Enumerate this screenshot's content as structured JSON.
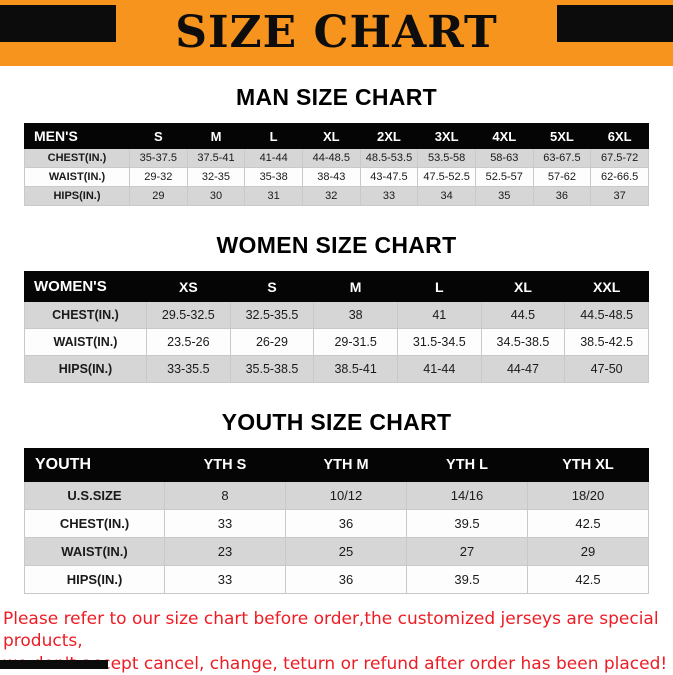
{
  "banner": {
    "title": "SIZE CHART",
    "bg_color": "#F7941D",
    "corner_color": "#0C0C0C"
  },
  "sections": [
    {
      "id": "men",
      "heading": "MAN SIZE CHART",
      "table": {
        "header": [
          "MEN'S",
          "S",
          "M",
          "L",
          "XL",
          "2XL",
          "3XL",
          "4XL",
          "5XL",
          "6XL"
        ],
        "rows": [
          [
            "CHEST(IN.)",
            "35-37.5",
            "37.5-41",
            "41-44",
            "44-48.5",
            "48.5-53.5",
            "53.5-58",
            "58-63",
            "63-67.5",
            "67.5-72"
          ],
          [
            "WAIST(IN.)",
            "29-32",
            "32-35",
            "35-38",
            "38-43",
            "43-47.5",
            "47.5-52.5",
            "52.5-57",
            "57-62",
            "62-66.5"
          ],
          [
            "HIPS(IN.)",
            "29",
            "30",
            "31",
            "32",
            "33",
            "34",
            "35",
            "36",
            "37"
          ]
        ]
      }
    },
    {
      "id": "women",
      "heading": "WOMEN SIZE CHART",
      "table": {
        "header": [
          "WOMEN'S",
          "XS",
          "S",
          "M",
          "L",
          "XL",
          "XXL"
        ],
        "rows": [
          [
            "CHEST(IN.)",
            "29.5-32.5",
            "32.5-35.5",
            "38",
            "41",
            "44.5",
            "44.5-48.5"
          ],
          [
            "WAIST(IN.)",
            "23.5-26",
            "26-29",
            "29-31.5",
            "31.5-34.5",
            "34.5-38.5",
            "38.5-42.5"
          ],
          [
            "HIPS(IN.)",
            "33-35.5",
            "35.5-38.5",
            "38.5-41",
            "41-44",
            "44-47",
            "47-50"
          ]
        ]
      }
    },
    {
      "id": "youth",
      "heading": "YOUTH SIZE CHART",
      "table": {
        "header": [
          "YOUTH",
          "YTH S",
          "YTH M",
          "YTH L",
          "YTH XL"
        ],
        "rows": [
          [
            "U.S.SIZE",
            "8",
            "10/12",
            "14/16",
            "18/20"
          ],
          [
            "CHEST(IN.)",
            "33",
            "36",
            "39.5",
            "42.5"
          ],
          [
            "WAIST(IN.)",
            "23",
            "25",
            "27",
            "29"
          ],
          [
            "HIPS(IN.)",
            "33",
            "36",
            "39.5",
            "42.5"
          ]
        ]
      }
    }
  ],
  "footer": {
    "line1": "Please refer to our size chart before order,the customized jerseys are special products,",
    "line2": "we don't accept cancel, change, teturn or refund after order has been placed!",
    "text_color": "#ED1C24"
  }
}
